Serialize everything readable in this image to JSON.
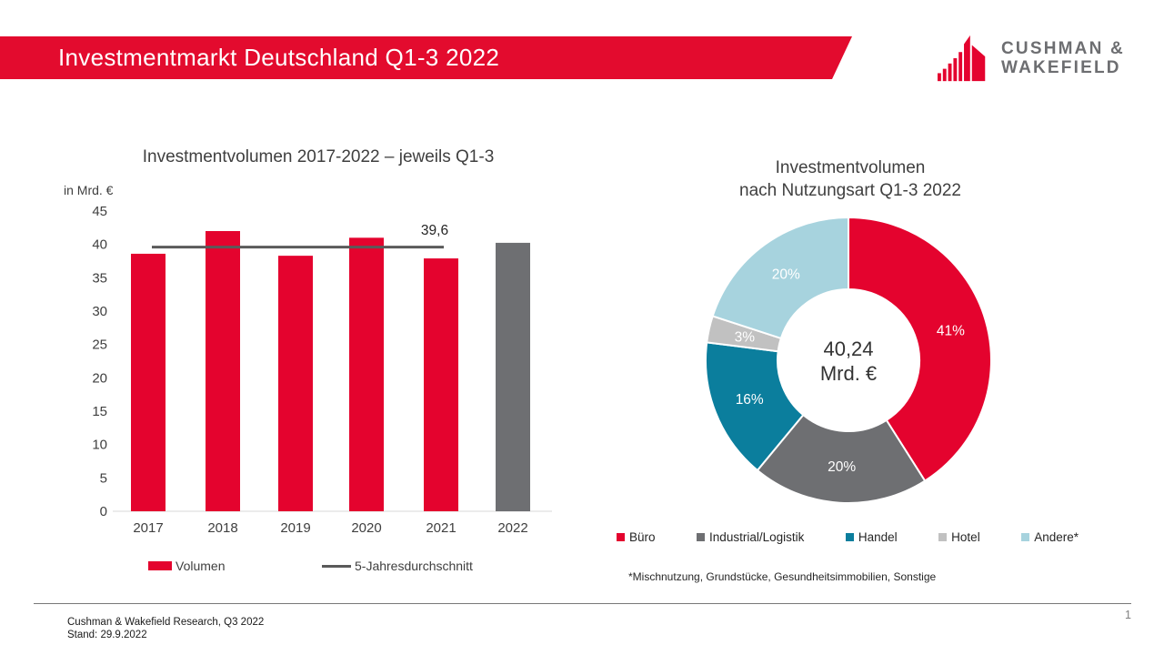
{
  "header": {
    "title": "Investmentmarkt Deutschland Q1-3 2022",
    "logo": {
      "line1": "CUSHMAN &",
      "line2": "WAKEFIELD"
    }
  },
  "charts": {
    "bar_title": "Investmentvolumen 2017-2022 – jeweils Q1-3",
    "bar_unit": "in Mrd. €",
    "donut_title_line1": "Investmentvolumen",
    "donut_title_line2": "nach Nutzungsart Q1-3 2022",
    "donut_center_value": "40,24",
    "donut_center_unit": "Mrd. €",
    "donut_footnote": "*Mischnutzung, Grundstücke, Gesundheitsimmobilien, Sonstige"
  },
  "chart_data": [
    {
      "type": "bar",
      "title": "Investmentvolumen 2017-2022 – jeweils Q1-3",
      "ylabel": "in Mrd. €",
      "categories": [
        "2017",
        "2018",
        "2019",
        "2020",
        "2021",
        "2022"
      ],
      "series": [
        {
          "name": "Volumen",
          "values": [
            38.6,
            42.0,
            38.3,
            41.0,
            37.9,
            40.24
          ]
        }
      ],
      "bar_colors": [
        "#E4032E",
        "#E4032E",
        "#E4032E",
        "#E4032E",
        "#E4032E",
        "#6E6F72"
      ],
      "ylim": [
        0,
        45
      ],
      "ytick_step": 5,
      "grid": false,
      "average_line": {
        "name": "5-Jahresdurchschnitt",
        "value": 39.6,
        "value_label": "39,6",
        "color": "#5A5A5A",
        "from_category": "2017",
        "to_category": "2021"
      },
      "legend": [
        {
          "label": "Volumen",
          "marker": "rect",
          "color": "#E4032E"
        },
        {
          "label": "5-Jahresdurchschnitt",
          "marker": "line",
          "color": "#5A5A5A"
        }
      ],
      "legend_position": "bottom"
    },
    {
      "type": "pie",
      "subtype": "donut",
      "title": "Investmentvolumen nach Nutzungsart Q1-3 2022",
      "center_value": "40,24",
      "center_unit": "Mrd. €",
      "slices": [
        {
          "label": "Büro",
          "pct": 41,
          "pct_label": "41%",
          "color": "#E4032E"
        },
        {
          "label": "Industrial/Logistik",
          "pct": 20,
          "pct_label": "20%",
          "color": "#6E6F72"
        },
        {
          "label": "Handel",
          "pct": 16,
          "pct_label": "16%",
          "color": "#0B7E9D"
        },
        {
          "label": "Hotel",
          "pct": 3,
          "pct_label": "3%",
          "color": "#C1C1C1"
        },
        {
          "label": "Andere*",
          "pct": 20,
          "pct_label": "20%",
          "color": "#A7D3DE"
        }
      ],
      "legend_position": "bottom",
      "footnote": "*Mischnutzung, Grundstücke, Gesundheitsimmobilien, Sonstige"
    }
  ],
  "footer": {
    "source_line1": "Cushman & Wakefield Research, Q3 2022",
    "source_line2": "Stand: 29.9.2022",
    "page_number": "1"
  },
  "colors": {
    "brand_red": "#E4032E",
    "dark_gray": "#6E6F72",
    "teal": "#0B7E9D",
    "light_gray": "#C1C1C1",
    "light_blue": "#A7D3DE",
    "logo_gray": "#6D6E71"
  }
}
